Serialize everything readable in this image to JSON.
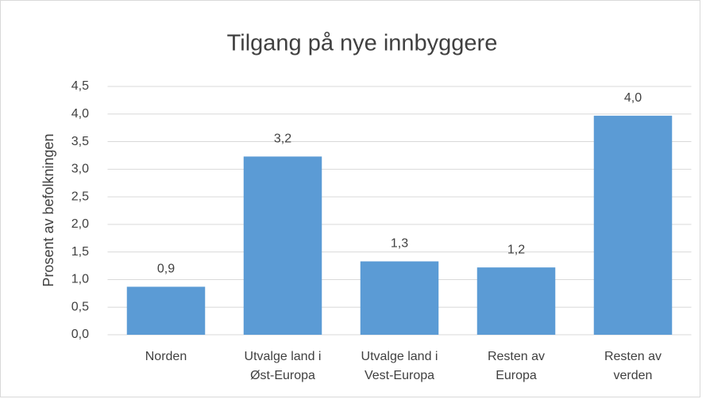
{
  "chart_data": {
    "type": "bar",
    "title": "Tilgang på nye innbyggere",
    "y_label": "Prosent av befolkningen",
    "categories": [
      [
        "Norden"
      ],
      [
        "Utvalge land i",
        "Øst-Europa"
      ],
      [
        "Utvalge land i",
        "Vest-Europa"
      ],
      [
        "Resten av",
        "Europa"
      ],
      [
        "Resten av",
        "verden"
      ]
    ],
    "values": [
      0.87,
      3.23,
      1.33,
      1.22,
      3.97
    ],
    "value_labels": [
      "0,9",
      "3,2",
      "1,3",
      "1,2",
      "4,0"
    ],
    "color": "#5b9bd5",
    "ylim": [
      0,
      4.5
    ],
    "yticks": [
      {
        "value": 0,
        "label": "0,0"
      },
      {
        "value": 0.5,
        "label": "0,5"
      },
      {
        "value": 1,
        "label": "1,0"
      },
      {
        "value": 1.5,
        "label": "1,5"
      },
      {
        "value": 2,
        "label": "2,0"
      },
      {
        "value": 2.5,
        "label": "2,5"
      },
      {
        "value": 3,
        "label": "3,0"
      },
      {
        "value": 3.5,
        "label": "3,5"
      },
      {
        "value": 4,
        "label": "4,0"
      },
      {
        "value": 4.5,
        "label": "4,5"
      }
    ],
    "grid": true
  }
}
